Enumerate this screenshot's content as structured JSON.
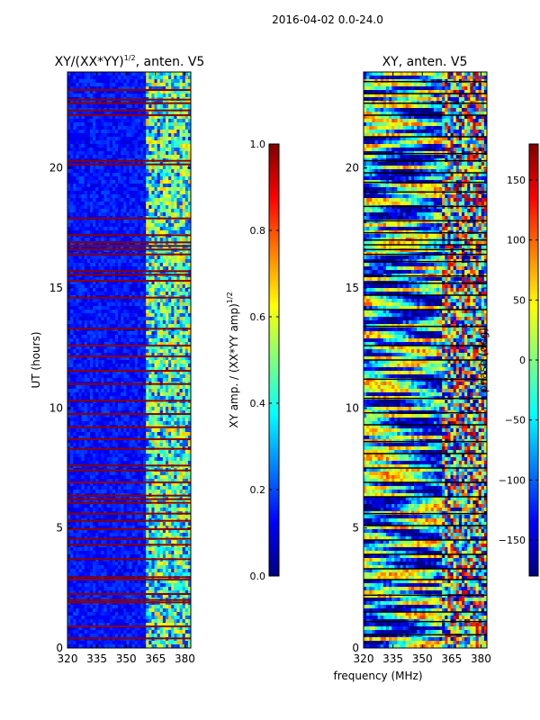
{
  "suptitle": "2016-04-02 0.0-24.0",
  "xlabel_shared": "frequency (MHz)",
  "colors": {
    "jet": [
      "#00007f",
      "#0000ff",
      "#007fff",
      "#00ffff",
      "#7fff7f",
      "#ffff00",
      "#ff7f00",
      "#ff0000",
      "#7f0000"
    ],
    "bad_row": "#8b0000",
    "row_line": "#000000"
  },
  "chart_data": [
    {
      "type": "heatmap",
      "title_main": "XY/(XX*YY)",
      "title_sup": "1/2",
      "title_tail": ", anten. V5",
      "xlabel": "",
      "ylabel": "UT (hours)",
      "xlim": [
        320,
        383
      ],
      "ylim": [
        0,
        24
      ],
      "xticks": [
        "320",
        "335",
        "350",
        "365",
        "380"
      ],
      "xtick_values": [
        320,
        335,
        350,
        365,
        380
      ],
      "yticks": [
        "0",
        "5",
        "10",
        "15",
        "20"
      ],
      "ytick_values": [
        0,
        5,
        10,
        15,
        20
      ],
      "colorbar": {
        "label_main": "XY amp. / (XX*YY amp)",
        "label_sup": "1/2",
        "range": [
          0.0,
          1.0
        ],
        "ticks": [
          "0.0",
          "0.2",
          "0.4",
          "0.6",
          "0.8",
          "1.0"
        ],
        "tick_values": [
          0.0,
          0.2,
          0.4,
          0.6,
          0.8,
          1.0
        ]
      },
      "band_edge_MHz": 360.5,
      "bad_rows_UT": [
        0.4,
        0.9,
        1.9,
        2.0,
        2.25,
        2.85,
        2.95,
        3.7,
        4.3,
        4.55,
        4.95,
        5.3,
        5.6,
        6.05,
        6.2,
        6.35,
        6.9,
        7.4,
        7.6,
        8.3,
        8.7,
        9.2,
        9.75,
        10.3,
        11.0,
        11.55,
        12.15,
        12.6,
        13.3,
        14.6,
        15.3,
        15.55,
        15.7,
        16.4,
        16.6,
        16.75,
        16.9,
        17.2,
        17.9,
        20.15,
        20.3,
        22.2,
        22.4,
        22.7,
        22.85,
        23.25
      ]
    },
    {
      "type": "heatmap",
      "title": "XY, anten. V5",
      "xlabel": "frequency (MHz)",
      "ylabel": "",
      "xlim": [
        320,
        383
      ],
      "ylim": [
        0,
        24
      ],
      "xticks": [
        "320",
        "335",
        "350",
        "365",
        "380"
      ],
      "xtick_values": [
        320,
        335,
        350,
        365,
        380
      ],
      "yticks": [
        "0",
        "5",
        "10",
        "15",
        "20"
      ],
      "ytick_values": [
        0,
        5,
        10,
        15,
        20
      ],
      "colorbar": {
        "label": "phase (deg)",
        "range": [
          -180,
          180
        ],
        "ticks": [
          "−150",
          "−100",
          "−50",
          "0",
          "50",
          "100",
          "150"
        ],
        "tick_values": [
          -150,
          -100,
          -50,
          0,
          50,
          100,
          150
        ]
      },
      "band_edge_MHz": 360.5,
      "row_lines_UT": [
        0.55,
        1.1,
        1.5,
        2.2,
        2.85,
        3.3,
        3.9,
        4.5,
        5.1,
        5.6,
        6.3,
        6.9,
        7.5,
        8.1,
        8.6,
        9.3,
        9.8,
        10.4,
        11.2,
        12.0,
        12.6,
        13.4,
        14.1,
        14.7,
        15.2,
        15.5,
        16.1,
        16.4,
        16.6,
        16.8,
        17.0,
        17.3,
        17.8,
        18.4,
        19.0,
        19.4,
        19.8,
        20.3,
        20.6,
        21.3,
        22.2,
        22.7,
        23.1,
        23.6
      ]
    }
  ]
}
